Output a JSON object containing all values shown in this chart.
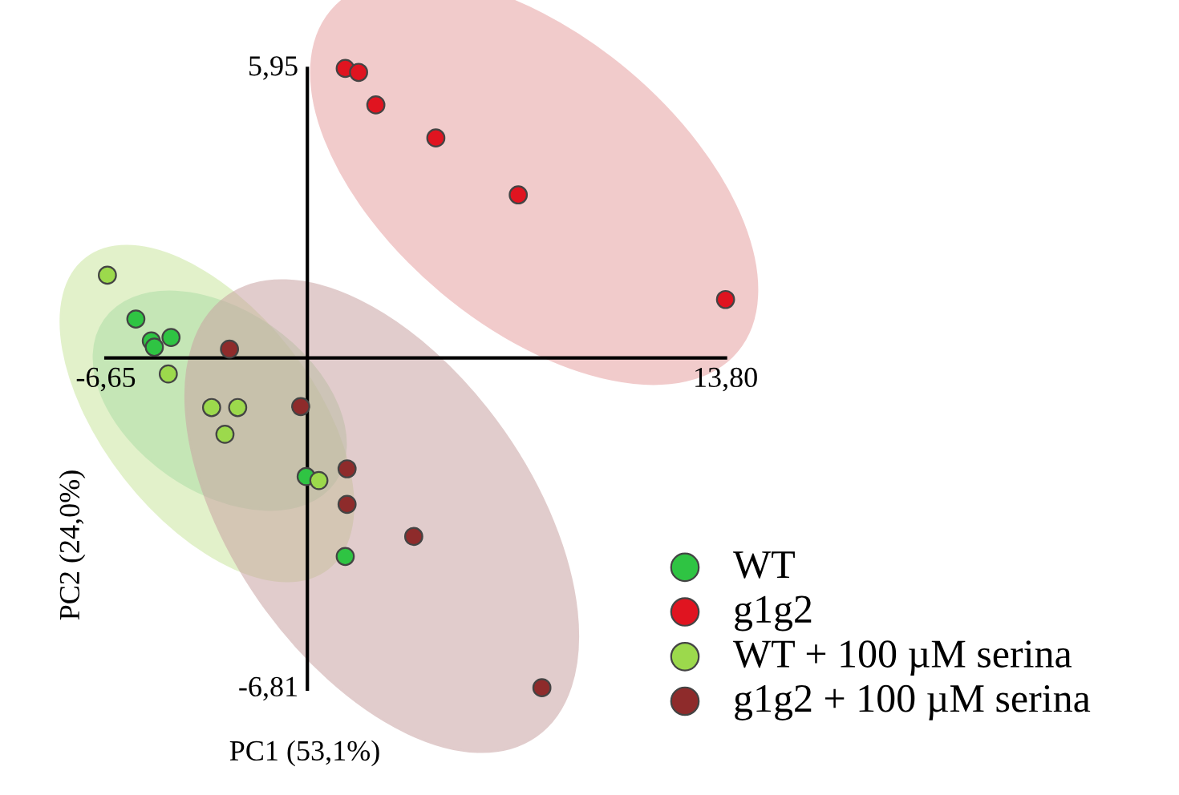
{
  "chart_data": {
    "type": "scatter",
    "xlabel": "PC1 (53,1%)",
    "ylabel": "PC2 (24,0%)",
    "xlim": [
      -6.65,
      13.8
    ],
    "ylim": [
      -6.81,
      5.95
    ],
    "xticks": [
      {
        "value": -6.65,
        "label": "-6,65"
      },
      {
        "value": 13.8,
        "label": "13,80"
      }
    ],
    "yticks": [
      {
        "value": -6.81,
        "label": "-6,81"
      },
      {
        "value": 5.95,
        "label": "5,95"
      }
    ],
    "grid": false,
    "legend": "bottom right",
    "marker": "circle",
    "series": [
      {
        "name": "WT",
        "color": "#2fc443",
        "x": [
          -5.66,
          -5.15,
          -5.05,
          -4.5,
          -0.04,
          1.25
        ],
        "values": [
          0.8,
          0.35,
          0.22,
          0.42,
          -2.44,
          -4.08
        ]
      },
      {
        "name": "g1g2",
        "color": "#e01420",
        "x": [
          1.25,
          1.69,
          2.26,
          4.24,
          6.96,
          13.8
        ],
        "values": [
          5.95,
          5.87,
          5.2,
          4.52,
          3.35,
          1.2
        ]
      },
      {
        "name": "WT + 100 µM serina",
        "color": "#9cd94c",
        "x": [
          -6.6,
          -4.59,
          -3.16,
          -2.3,
          -2.72,
          0.38
        ],
        "values": [
          1.7,
          -0.33,
          -1.02,
          -1.02,
          -1.57,
          -2.52
        ]
      },
      {
        "name": "g1g2 + 100 µM serina",
        "color": "#8e2b2b",
        "x": [
          -2.57,
          -0.22,
          1.31,
          1.31,
          3.51,
          7.74
        ],
        "values": [
          0.18,
          -1.0,
          -2.28,
          -3.01,
          -3.67,
          -6.78
        ]
      }
    ]
  }
}
